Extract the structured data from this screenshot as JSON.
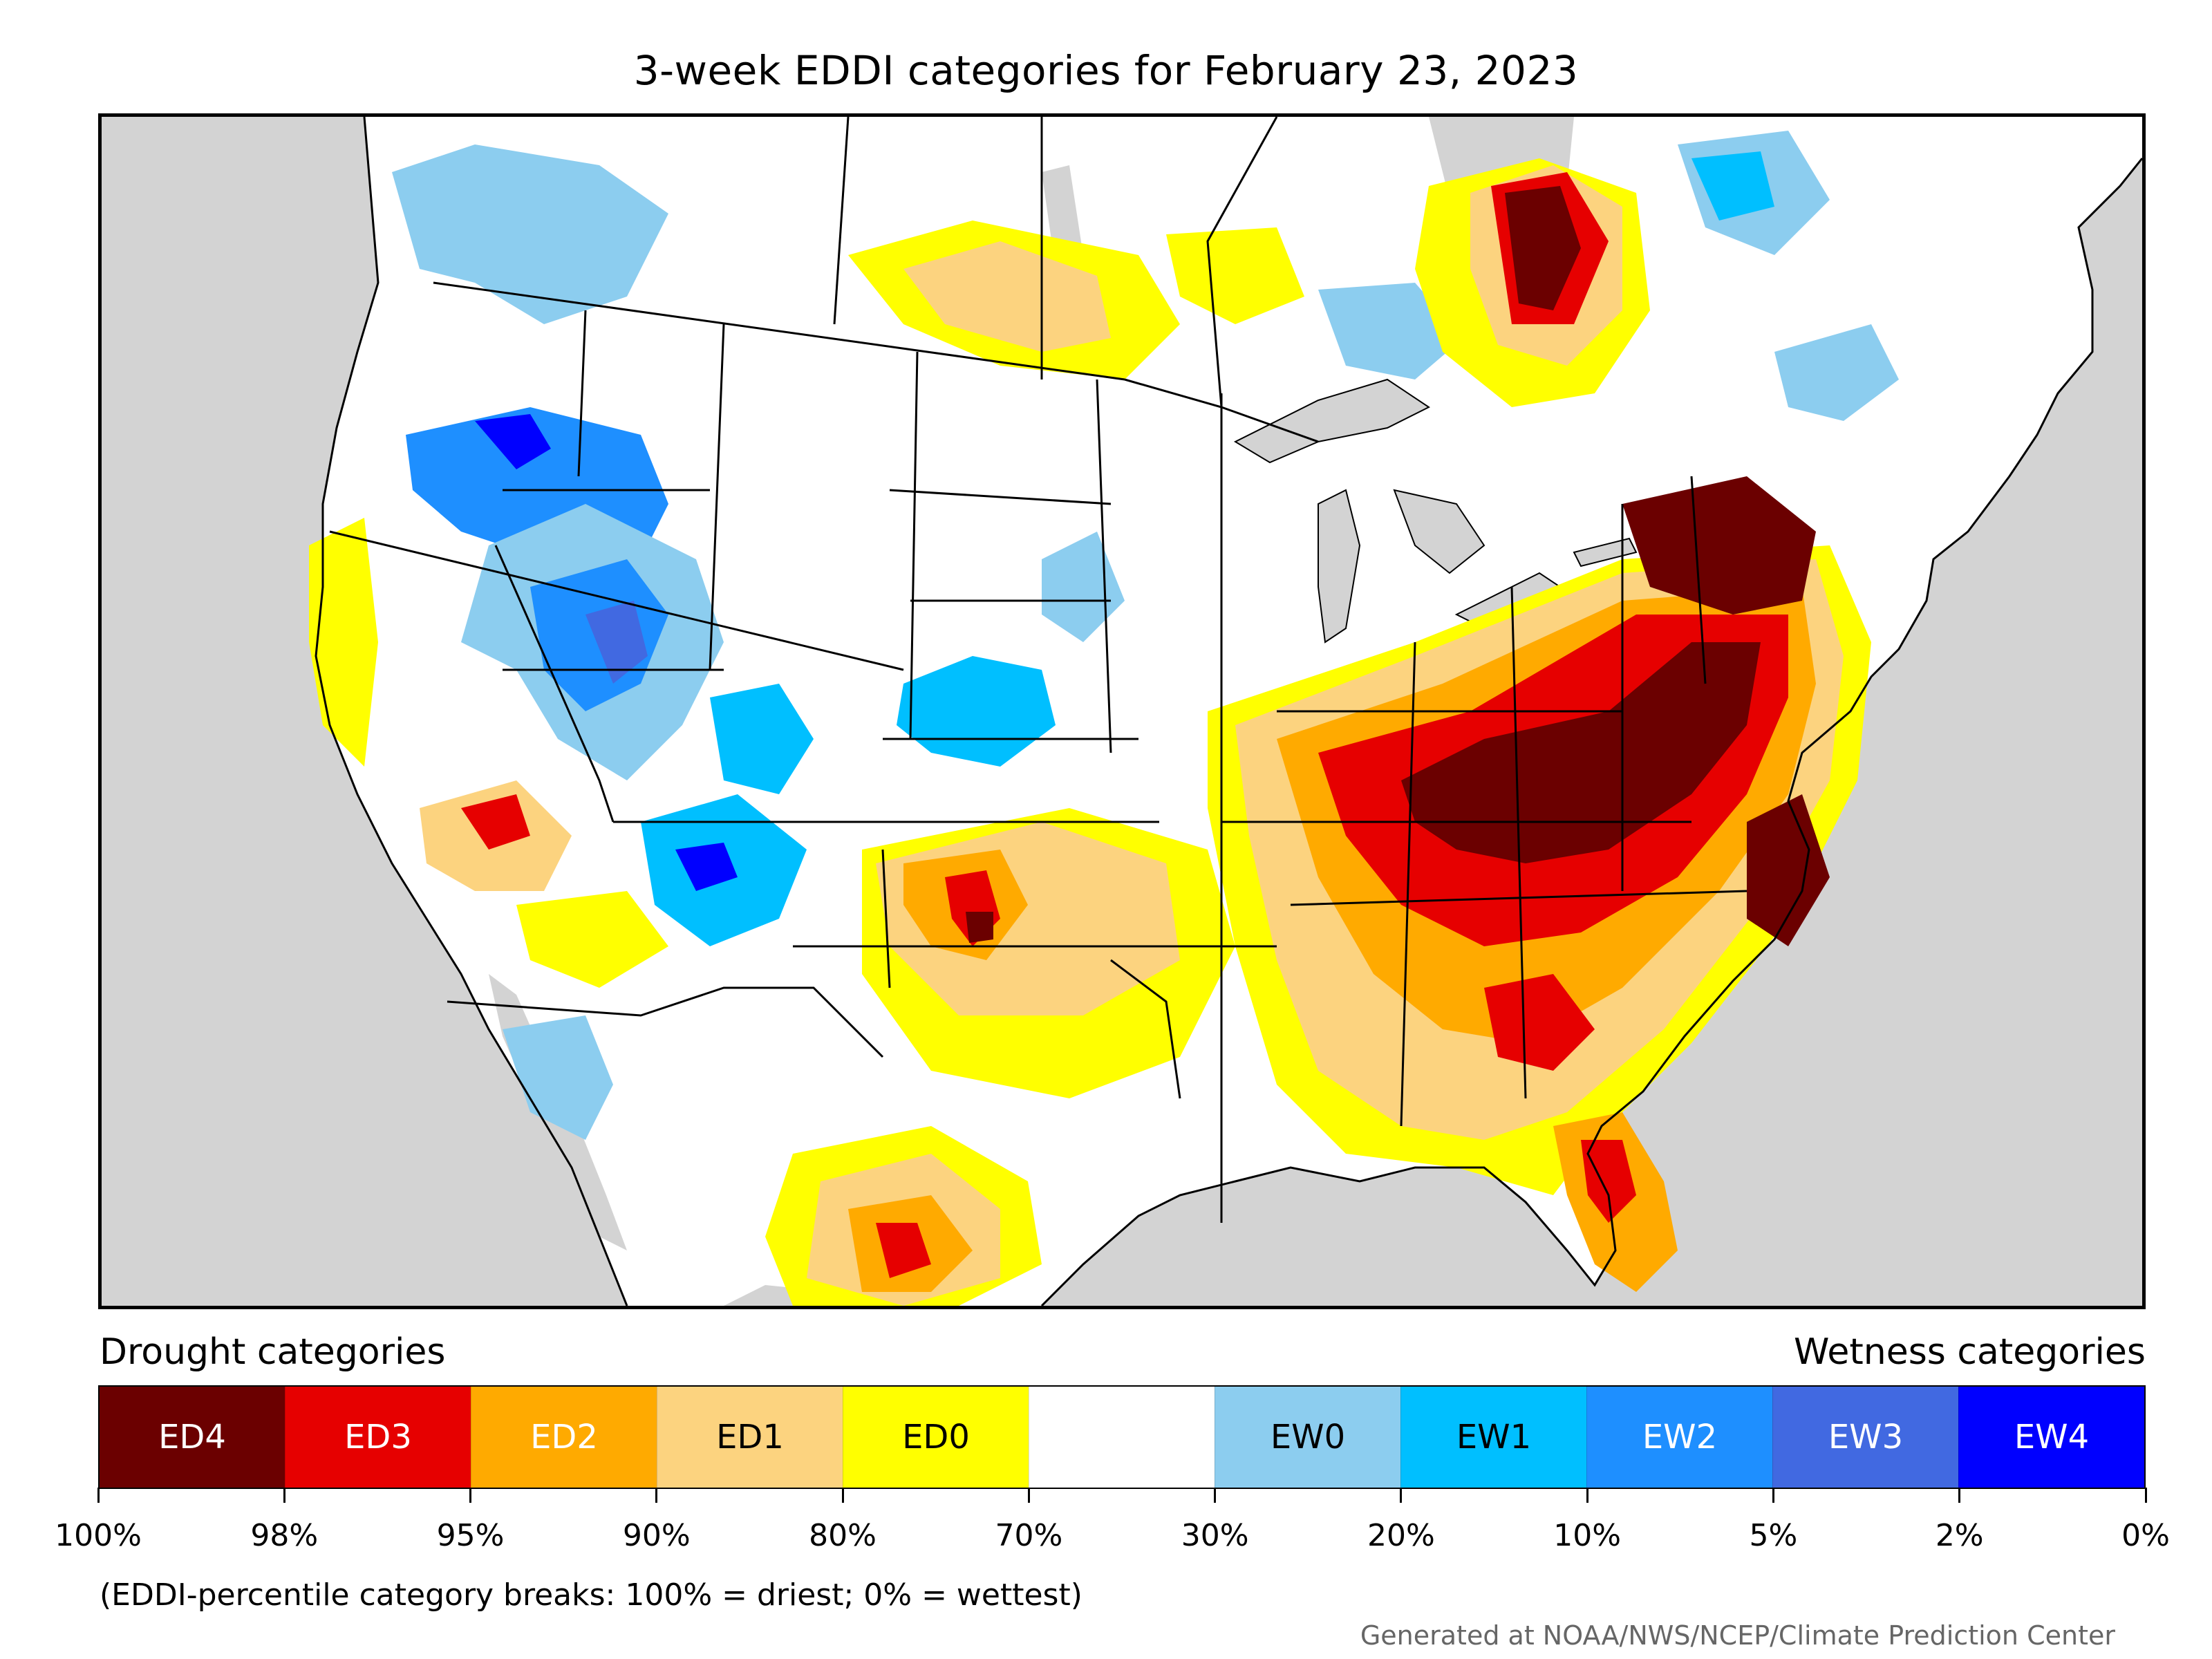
{
  "title": "3-week EDDI categories for February 23, 2023",
  "legend": {
    "drought_heading": "Drought categories",
    "wetness_heading": "Wetness categories",
    "categories": [
      {
        "label": "ED4",
        "color": "#6b0000",
        "text_color": "#ffffff"
      },
      {
        "label": "ED3",
        "color": "#e60000",
        "text_color": "#ffffff"
      },
      {
        "label": "ED2",
        "color": "#ffaa00",
        "text_color": "#ffffff"
      },
      {
        "label": "ED1",
        "color": "#fcd37f",
        "text_color": "#000000"
      },
      {
        "label": "ED0",
        "color": "#ffff00",
        "text_color": "#000000"
      },
      {
        "label": "",
        "color": "#ffffff",
        "text_color": "#000000"
      },
      {
        "label": "EW0",
        "color": "#8ccdef",
        "text_color": "#000000"
      },
      {
        "label": "EW1",
        "color": "#00bfff",
        "text_color": "#000000"
      },
      {
        "label": "EW2",
        "color": "#1e8fff",
        "text_color": "#ffffff"
      },
      {
        "label": "EW3",
        "color": "#4169e1",
        "text_color": "#ffffff"
      },
      {
        "label": "EW4",
        "color": "#0000ff",
        "text_color": "#ffffff"
      }
    ],
    "breaks": [
      "100%",
      "98%",
      "95%",
      "90%",
      "80%",
      "70%",
      "30%",
      "20%",
      "10%",
      "5%",
      "2%",
      "0%"
    ]
  },
  "footnote": "(EDDI-percentile category breaks: 100% = driest; 0% = wettest)",
  "credit": "Generated at NOAA/NWS/NCEP/Climate Prediction Center",
  "map_colors": {
    "background": "#d3d3d3",
    "land": "#ffffff",
    "border": "#000000"
  }
}
